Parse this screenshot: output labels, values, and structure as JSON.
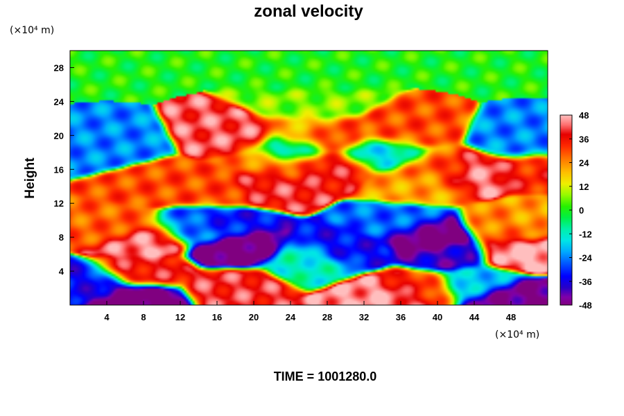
{
  "chart_data": {
    "type": "heatmap",
    "title": "zonal velocity",
    "ylabel": "Height",
    "xlabel": "",
    "x_unit": "(×10⁴ m)",
    "y_unit": "(×10⁴ m)",
    "footer": "TIME = 1001280.0",
    "xlim": [
      0,
      52
    ],
    "ylim": [
      0,
      30
    ],
    "x_ticks": [
      4,
      8,
      12,
      16,
      20,
      24,
      28,
      32,
      36,
      40,
      44,
      48
    ],
    "y_ticks": [
      4,
      8,
      12,
      16,
      20,
      24,
      28
    ],
    "colorbar": {
      "min": -48,
      "max": 48,
      "ticks": [
        48,
        36,
        24,
        12,
        0,
        -12,
        -24,
        -36,
        -48
      ]
    },
    "features": [
      {
        "x": 26,
        "y": 27,
        "value": 0
      },
      {
        "x": 26,
        "y": 23.5,
        "value": 6
      },
      {
        "x": 26,
        "y": 20.5,
        "value": 20
      },
      {
        "x": 18,
        "y": 20.1,
        "value": 42
      },
      {
        "x": 28,
        "y": 19.8,
        "value": 34
      },
      {
        "x": 36,
        "y": 20.3,
        "value": 30
      },
      {
        "x": 4,
        "y": 18.8,
        "value": -24
      },
      {
        "x": 50,
        "y": 19.2,
        "value": -24
      },
      {
        "x": 24,
        "y": 18.3,
        "value": -14
      },
      {
        "x": 34,
        "y": 18,
        "value": -16
      },
      {
        "x": 22,
        "y": 16.6,
        "value": 26
      },
      {
        "x": 28,
        "y": 16.3,
        "value": 38
      },
      {
        "x": 40,
        "y": 16,
        "value": 28
      },
      {
        "x": 44,
        "y": 15.6,
        "value": 44
      },
      {
        "x": 51,
        "y": 16,
        "value": 34
      },
      {
        "x": 10,
        "y": 14.3,
        "value": 30
      },
      {
        "x": 16,
        "y": 13.7,
        "value": 30
      },
      {
        "x": 21,
        "y": 14.2,
        "value": 40
      },
      {
        "x": 38,
        "y": 14.3,
        "value": 22
      },
      {
        "x": 5,
        "y": 9,
        "value": 28
      },
      {
        "x": 8,
        "y": 7.5,
        "value": 46
      },
      {
        "x": 8,
        "y": 4,
        "value": 38
      },
      {
        "x": 18,
        "y": 6.5,
        "value": -50
      },
      {
        "x": 16,
        "y": 9.5,
        "value": -34
      },
      {
        "x": 14,
        "y": 9,
        "value": -22
      },
      {
        "x": 30,
        "y": 6.5,
        "value": -34
      },
      {
        "x": 39,
        "y": 8,
        "value": -54
      },
      {
        "x": 41,
        "y": 6,
        "value": -40
      },
      {
        "x": 36,
        "y": 9.5,
        "value": -26
      },
      {
        "x": 26,
        "y": 5,
        "value": -12
      },
      {
        "x": 49,
        "y": 6.3,
        "value": 48
      },
      {
        "x": 48,
        "y": 9,
        "value": 26
      },
      {
        "x": 51,
        "y": 10,
        "value": 22
      },
      {
        "x": 18,
        "y": 2.2,
        "value": 40
      },
      {
        "x": 34,
        "y": 1,
        "value": 46
      },
      {
        "x": 38,
        "y": 2,
        "value": 34
      },
      {
        "x": 7,
        "y": 0.8,
        "value": -52
      },
      {
        "x": 2,
        "y": 2.5,
        "value": -34
      },
      {
        "x": 48,
        "y": 0.8,
        "value": -48
      },
      {
        "x": 44,
        "y": 2.5,
        "value": -18
      }
    ],
    "grid": false,
    "legend": "right"
  }
}
